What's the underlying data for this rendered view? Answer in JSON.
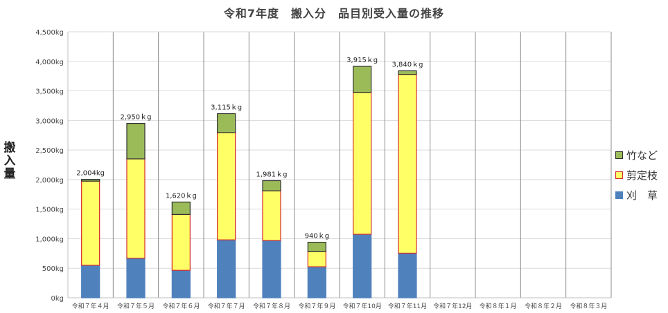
{
  "chart_data": {
    "type": "bar",
    "stacked": true,
    "title": "令和7年度　搬入分　品目別受入量の推移",
    "ylabel": "搬入量",
    "ylim": [
      0,
      4500
    ],
    "yticks": [
      {
        "value": 0,
        "label": "0kg"
      },
      {
        "value": 500,
        "label": "500kg"
      },
      {
        "value": 1000,
        "label": "1,000kg"
      },
      {
        "value": 1500,
        "label": "1,500kg"
      },
      {
        "value": 2000,
        "label": "2,000kg"
      },
      {
        "value": 2500,
        "label": "2,500kg"
      },
      {
        "value": 3000,
        "label": "3,000kg"
      },
      {
        "value": 3500,
        "label": "3,500kg"
      },
      {
        "value": 4000,
        "label": "4,000kg"
      },
      {
        "value": 4500,
        "label": "4,500kg"
      }
    ],
    "grid": true,
    "legend_position": "right",
    "categories": [
      "令和７年４月",
      "令和７年５月",
      "令和７年６月",
      "令和７年７月",
      "令和７年８月",
      "令和７年９月",
      "令和７年10月",
      "令和７年11月",
      "令和７年12月",
      "令和８年１月",
      "令和８年２月",
      "令和８年３月"
    ],
    "series": [
      {
        "name": "刈　草",
        "color": "#4f81bd",
        "stroke": "#4f81bd",
        "values": [
          550,
          670,
          465,
          980,
          970,
          525,
          1075,
          755,
          null,
          null,
          null,
          null
        ]
      },
      {
        "name": "剪定枝",
        "color": "#ffff66",
        "stroke": "#d62b2b",
        "values": [
          1424,
          1680,
          945,
          1815,
          840,
          255,
          2400,
          3025,
          null,
          null,
          null,
          null
        ]
      },
      {
        "name": "竹など",
        "color": "#9bbb59",
        "stroke": "#2f2f2f",
        "values": [
          30,
          600,
          210,
          320,
          171,
          160,
          440,
          60,
          null,
          null,
          null,
          null
        ]
      }
    ],
    "totals": [
      2004,
      2950,
      1620,
      3115,
      1981,
      940,
      3915,
      3840,
      null,
      null,
      null,
      null
    ],
    "total_labels": [
      "2,004kg",
      "2,950ｋg",
      "1,620ｋg",
      "3,115ｋg",
      "1,981ｋg",
      "940ｋg",
      "3,915ｋg",
      "3,840ｋg",
      "",
      "",
      "",
      ""
    ],
    "legend_order": [
      "竹など",
      "剪定枝",
      "刈　草"
    ]
  }
}
